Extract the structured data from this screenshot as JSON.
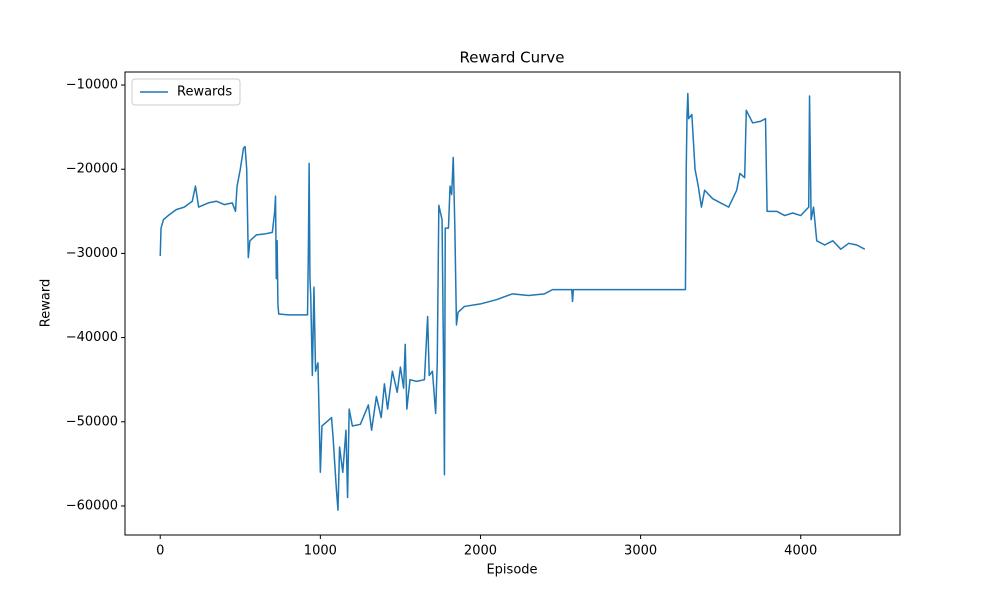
{
  "chart_data": {
    "type": "line",
    "title": "Reward Curve",
    "x_label": "Episode",
    "y_label": "Reward",
    "xlim": [
      -220,
      4620
    ],
    "xticks": [
      0,
      1000,
      2000,
      3000,
      4000
    ],
    "ylim": [
      -63450,
      -8450
    ],
    "yticks": [
      {
        "value": -10000,
        "label": "−10000"
      },
      {
        "value": -20000,
        "label": "−20000"
      },
      {
        "value": -30000,
        "label": "−30000"
      },
      {
        "value": -40000,
        "label": "−40000"
      },
      {
        "value": -50000,
        "label": "−50000"
      },
      {
        "value": -60000,
        "label": "−60000"
      }
    ],
    "legend": "upper left",
    "x": [
      0,
      5,
      20,
      50,
      100,
      150,
      200,
      220,
      240,
      300,
      350,
      400,
      450,
      470,
      480,
      500,
      520,
      530,
      540,
      550,
      560,
      600,
      650,
      700,
      715,
      720,
      725,
      730,
      735,
      740,
      800,
      900,
      920,
      925,
      930,
      935,
      940,
      950,
      960,
      970,
      985,
      1000,
      1010,
      1040,
      1070,
      1080,
      1100,
      1110,
      1120,
      1140,
      1160,
      1170,
      1180,
      1200,
      1250,
      1300,
      1320,
      1350,
      1380,
      1400,
      1420,
      1450,
      1480,
      1500,
      1520,
      1530,
      1540,
      1560,
      1600,
      1650,
      1670,
      1680,
      1700,
      1720,
      1730,
      1740,
      1760,
      1770,
      1775,
      1780,
      1800,
      1810,
      1820,
      1830,
      1840,
      1850,
      1860,
      1900,
      2000,
      2100,
      2200,
      2300,
      2400,
      2450,
      2570,
      2575,
      2580,
      2700,
      3000,
      3280,
      3285,
      3290,
      3295,
      3300,
      3320,
      3340,
      3360,
      3380,
      3400,
      3450,
      3500,
      3550,
      3600,
      3620,
      3650,
      3660,
      3700,
      3750,
      3780,
      3790,
      3850,
      3900,
      3950,
      4000,
      4050,
      4055,
      4065,
      4080,
      4100,
      4150,
      4200,
      4250,
      4300,
      4350,
      4400
    ],
    "series": [
      {
        "name": "Rewards",
        "color": "#1f77b4",
        "values": [
          -30300,
          -27000,
          -26000,
          -25500,
          -24800,
          -24500,
          -23800,
          -22000,
          -24500,
          -24000,
          -23800,
          -24200,
          -24000,
          -25000,
          -22000,
          -20000,
          -17500,
          -17300,
          -20000,
          -30500,
          -28500,
          -27800,
          -27700,
          -27500,
          -25000,
          -23200,
          -33000,
          -28500,
          -36000,
          -37200,
          -37300,
          -37300,
          -37300,
          -30000,
          -19300,
          -33000,
          -35000,
          -44500,
          -34000,
          -44000,
          -43000,
          -56000,
          -50500,
          -50000,
          -49500,
          -52000,
          -58000,
          -60500,
          -53000,
          -56000,
          -51000,
          -59000,
          -48500,
          -50500,
          -50300,
          -48000,
          -51000,
          -47000,
          -49500,
          -45500,
          -48500,
          -44000,
          -46500,
          -43500,
          -46000,
          -40800,
          -48500,
          -45000,
          -45200,
          -45000,
          -37500,
          -44500,
          -44000,
          -49000,
          -43000,
          -24300,
          -26000,
          -44000,
          -56300,
          -27000,
          -27000,
          -22000,
          -23000,
          -18600,
          -27000,
          -38500,
          -37000,
          -36300,
          -36000,
          -35500,
          -34800,
          -35000,
          -34800,
          -34300,
          -34300,
          -35700,
          -34300,
          -34300,
          -34300,
          -34300,
          -20000,
          -13500,
          -11000,
          -14000,
          -13500,
          -20000,
          -22000,
          -24500,
          -22500,
          -23500,
          -24000,
          -24500,
          -22500,
          -20500,
          -21000,
          -13000,
          -14500,
          -14300,
          -14000,
          -25000,
          -25000,
          -25500,
          -25200,
          -25500,
          -24500,
          -11300,
          -26000,
          -24500,
          -28500,
          -29000,
          -28500,
          -29500,
          -28800,
          -29000,
          -29500
        ]
      }
    ]
  }
}
